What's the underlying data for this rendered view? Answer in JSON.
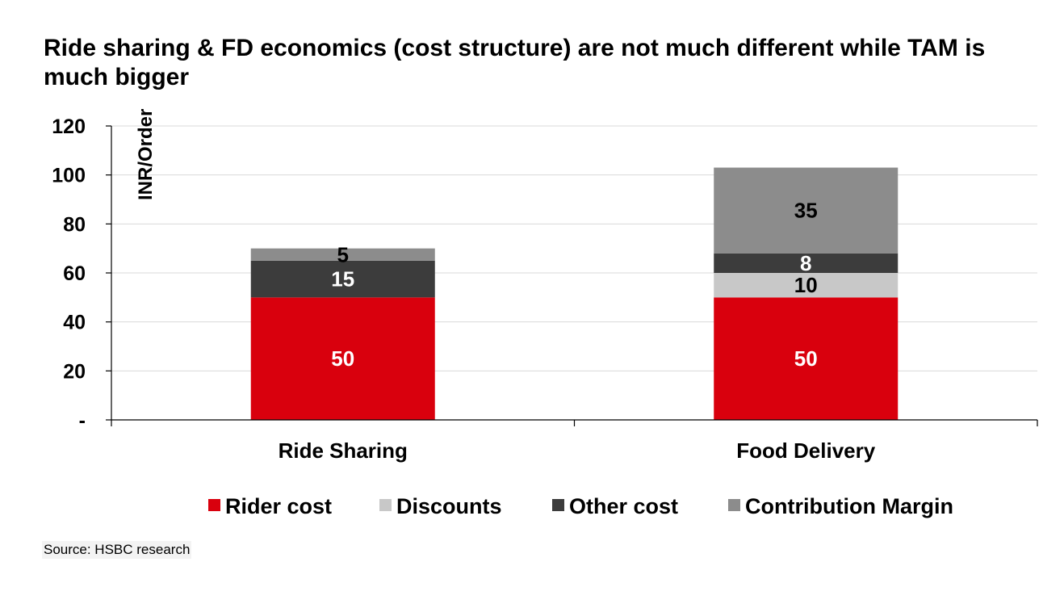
{
  "chart_data": {
    "type": "bar",
    "stacked": true,
    "title": "Ride sharing & FD economics (cost structure) are not much different while TAM is much bigger",
    "ylabel": "INR/Order",
    "xlabel": "",
    "ylim": [
      0,
      120
    ],
    "yticks": [
      0,
      20,
      40,
      60,
      80,
      100,
      120
    ],
    "ytick_labels": [
      "-",
      "20",
      "40",
      "60",
      "80",
      "100",
      "120"
    ],
    "grid": true,
    "legend_position": "bottom",
    "categories": [
      "Ride Sharing",
      "Food Delivery"
    ],
    "series": [
      {
        "name": "Rider cost",
        "color": "#d9000d",
        "label_color": "#ffffff",
        "values": [
          50,
          50
        ],
        "labels": [
          "50",
          "50"
        ]
      },
      {
        "name": "Discounts",
        "color": "#c8c8c8",
        "label_color": "#000000",
        "values": [
          0,
          10
        ],
        "labels": [
          "",
          "10"
        ]
      },
      {
        "name": "Other cost",
        "color": "#3c3c3c",
        "label_color": "#ffffff",
        "values": [
          15,
          8
        ],
        "labels": [
          "15",
          "8"
        ]
      },
      {
        "name": "Contribution Margin",
        "color": "#8c8c8c",
        "label_color": "#000000",
        "values": [
          5,
          35
        ],
        "labels": [
          "5",
          "35"
        ]
      }
    ]
  },
  "source": "Source: HSBC research"
}
